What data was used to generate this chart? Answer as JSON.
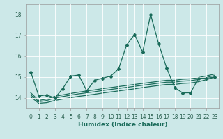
{
  "title": "",
  "xlabel": "Humidex (Indice chaleur)",
  "ylabel": "",
  "bg_color": "#cce8e8",
  "grid_color": "#ffffff",
  "line_color": "#1a6b5a",
  "xlim": [
    -0.5,
    23.5
  ],
  "ylim": [
    13.5,
    18.5
  ],
  "yticks": [
    14,
    15,
    16,
    17,
    18
  ],
  "xticks": [
    0,
    1,
    2,
    3,
    4,
    5,
    6,
    7,
    8,
    9,
    10,
    11,
    12,
    13,
    14,
    15,
    16,
    17,
    18,
    19,
    20,
    21,
    22,
    23
  ],
  "lines": [
    {
      "x": [
        0,
        1,
        2,
        3,
        4,
        5,
        6,
        7,
        8,
        9,
        10,
        11,
        12,
        13,
        14,
        15,
        16,
        17,
        18,
        19,
        20,
        21,
        22,
        23
      ],
      "y": [
        15.25,
        14.1,
        14.15,
        14.0,
        14.45,
        15.05,
        15.1,
        14.35,
        14.85,
        14.95,
        15.05,
        15.4,
        16.55,
        17.05,
        16.2,
        18.0,
        16.6,
        15.45,
        14.5,
        14.25,
        14.25,
        14.95,
        14.95,
        15.0
      ],
      "marker": "D",
      "markersize": 2.0,
      "linewidth": 0.9,
      "has_marker": true
    },
    {
      "x": [
        0,
        1,
        2,
        3,
        4,
        5,
        6,
        7,
        8,
        9,
        10,
        11,
        12,
        13,
        14,
        15,
        16,
        17,
        18,
        19,
        20,
        21,
        22,
        23
      ],
      "y": [
        14.05,
        13.75,
        13.78,
        13.88,
        13.95,
        14.02,
        14.08,
        14.13,
        14.18,
        14.24,
        14.29,
        14.34,
        14.39,
        14.44,
        14.5,
        14.55,
        14.6,
        14.65,
        14.65,
        14.7,
        14.72,
        14.78,
        14.88,
        15.0
      ],
      "marker": null,
      "markersize": 0,
      "linewidth": 0.9,
      "has_marker": false
    },
    {
      "x": [
        0,
        1,
        2,
        3,
        4,
        5,
        6,
        7,
        8,
        9,
        10,
        11,
        12,
        13,
        14,
        15,
        16,
        17,
        18,
        19,
        20,
        21,
        22,
        23
      ],
      "y": [
        14.15,
        13.82,
        13.88,
        14.0,
        14.07,
        14.14,
        14.2,
        14.25,
        14.3,
        14.36,
        14.41,
        14.46,
        14.51,
        14.56,
        14.61,
        14.66,
        14.71,
        14.76,
        14.76,
        14.81,
        14.83,
        14.89,
        14.98,
        15.08
      ],
      "marker": null,
      "markersize": 0,
      "linewidth": 0.9,
      "has_marker": false
    },
    {
      "x": [
        0,
        1,
        2,
        3,
        4,
        5,
        6,
        7,
        8,
        9,
        10,
        11,
        12,
        13,
        14,
        15,
        16,
        17,
        18,
        19,
        20,
        21,
        22,
        23
      ],
      "y": [
        14.25,
        13.88,
        13.95,
        14.08,
        14.15,
        14.22,
        14.28,
        14.34,
        14.39,
        14.45,
        14.5,
        14.55,
        14.6,
        14.65,
        14.7,
        14.75,
        14.8,
        14.85,
        14.85,
        14.9,
        14.92,
        14.98,
        15.06,
        15.15
      ],
      "marker": null,
      "markersize": 0,
      "linewidth": 0.9,
      "has_marker": false
    }
  ],
  "tick_fontsize": 5.5,
  "xlabel_fontsize": 6.5,
  "tick_color": "#2a6050",
  "spine_color": "#999999"
}
